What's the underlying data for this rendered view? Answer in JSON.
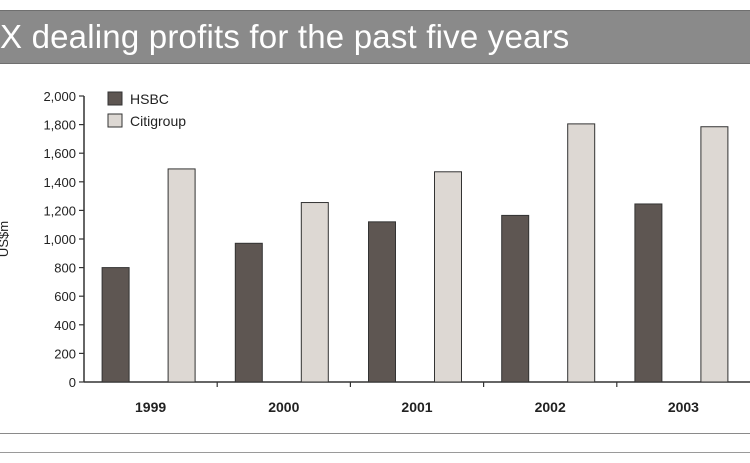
{
  "header": {
    "title": "X dealing profits for the past five years"
  },
  "chart_data": {
    "type": "bar",
    "title": "X dealing profits for the past five years",
    "ylabel": "US$m",
    "xlabel": "",
    "categories": [
      "1999",
      "2000",
      "2001",
      "2002",
      "2003"
    ],
    "series": [
      {
        "name": "HSBC",
        "values": [
          800,
          970,
          1120,
          1165,
          1245
        ],
        "color": "#5e5652"
      },
      {
        "name": "Citigroup",
        "values": [
          1490,
          1255,
          1470,
          1805,
          1785
        ],
        "color": "#ddd8d3"
      }
    ],
    "ylim": [
      0,
      2000
    ],
    "yticks": [
      "0",
      "200",
      "400",
      "600",
      "800",
      "1,000",
      "1,200",
      "1,400",
      "1,600",
      "1,800",
      "2,000"
    ],
    "ytick_values": [
      0,
      200,
      400,
      600,
      800,
      1000,
      1200,
      1400,
      1600,
      1800,
      2000
    ],
    "grid": false,
    "legend_position": "top-left"
  }
}
